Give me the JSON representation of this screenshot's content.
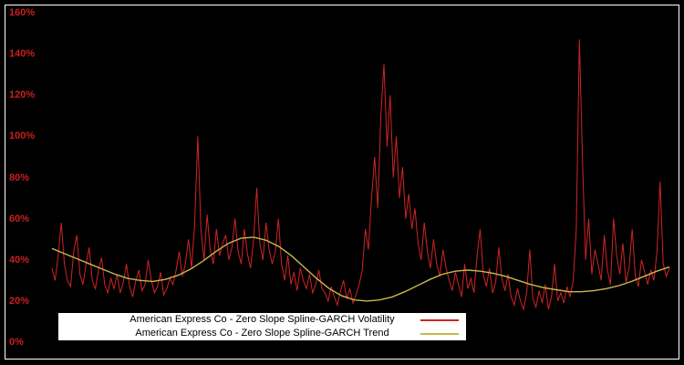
{
  "axis": {
    "tick_color": "#cc1f1f"
  },
  "legend": {
    "items": [
      {
        "label": "American Express Co - Zero Slope Spline-GARCH Volatility",
        "color": "#d02424"
      },
      {
        "label": "American Express Co - Zero Slope Spline-GARCH Trend",
        "color": "#c8b84b"
      }
    ]
  },
  "chart_data": {
    "type": "line",
    "title": "",
    "ylim": [
      0,
      160
    ],
    "y_tick_labels": [
      "160%",
      "140%",
      "120%",
      "100%",
      "80%",
      "60%",
      "40%",
      "20%",
      "0%"
    ],
    "grid": false,
    "legend_position": "bottom-inside",
    "background": "#000000",
    "series": [
      {
        "name": "American Express Co - Zero Slope Spline-GARCH Volatility",
        "color": "#d02424",
        "values": [
          36,
          30,
          42,
          58,
          38,
          30,
          27,
          44,
          52,
          33,
          28,
          38,
          46,
          30,
          26,
          35,
          41,
          28,
          24,
          31,
          26,
          33,
          24,
          29,
          38,
          27,
          22,
          30,
          35,
          25,
          28,
          40,
          30,
          24,
          27,
          34,
          23,
          26,
          31,
          28,
          35,
          44,
          32,
          38,
          50,
          36,
          58,
          100,
          55,
          40,
          62,
          45,
          38,
          55,
          42,
          48,
          52,
          40,
          46,
          60,
          44,
          38,
          55,
          43,
          36,
          50,
          75,
          48,
          40,
          58,
          45,
          38,
          44,
          60,
          38,
          30,
          42,
          28,
          34,
          25,
          36,
          30,
          26,
          33,
          24,
          28,
          35,
          26,
          24,
          20,
          27,
          22,
          18,
          25,
          30,
          21,
          26,
          19,
          23,
          28,
          35,
          55,
          45,
          70,
          90,
          65,
          110,
          135,
          95,
          120,
          80,
          100,
          70,
          85,
          60,
          72,
          55,
          65,
          48,
          40,
          58,
          44,
          36,
          50,
          38,
          32,
          45,
          36,
          30,
          25,
          34,
          28,
          22,
          38,
          26,
          31,
          24,
          42,
          55,
          33,
          27,
          36,
          24,
          29,
          46,
          31,
          25,
          33,
          22,
          18,
          26,
          20,
          16,
          24,
          45,
          21,
          17,
          25,
          19,
          28,
          16,
          22,
          38,
          20,
          24,
          19,
          27,
          22,
          30,
          55,
          147,
          88,
          40,
          60,
          33,
          45,
          38,
          30,
          52,
          35,
          28,
          60,
          42,
          33,
          48,
          29,
          36,
          55,
          32,
          27,
          40,
          34,
          28,
          35,
          30,
          44,
          78,
          38,
          32,
          36
        ]
      },
      {
        "name": "American Express Co - Zero Slope Spline-GARCH Trend",
        "color": "#c8b84b",
        "values": [
          45.5,
          43,
          40.5,
          38,
          35.5,
          33,
          31,
          30,
          29.5,
          30.5,
          32.5,
          35.5,
          39.5,
          44,
          48,
          50.5,
          51,
          49.5,
          46.5,
          42,
          36.5,
          31,
          26,
          22.5,
          20.5,
          20,
          20.5,
          22,
          24.5,
          27.5,
          30.5,
          33,
          34.5,
          35,
          34.5,
          33.5,
          32,
          30,
          28,
          26.5,
          25.5,
          24.5,
          24.5,
          25,
          26,
          27.5,
          29.5,
          32,
          34.5,
          36.5
        ]
      }
    ]
  }
}
